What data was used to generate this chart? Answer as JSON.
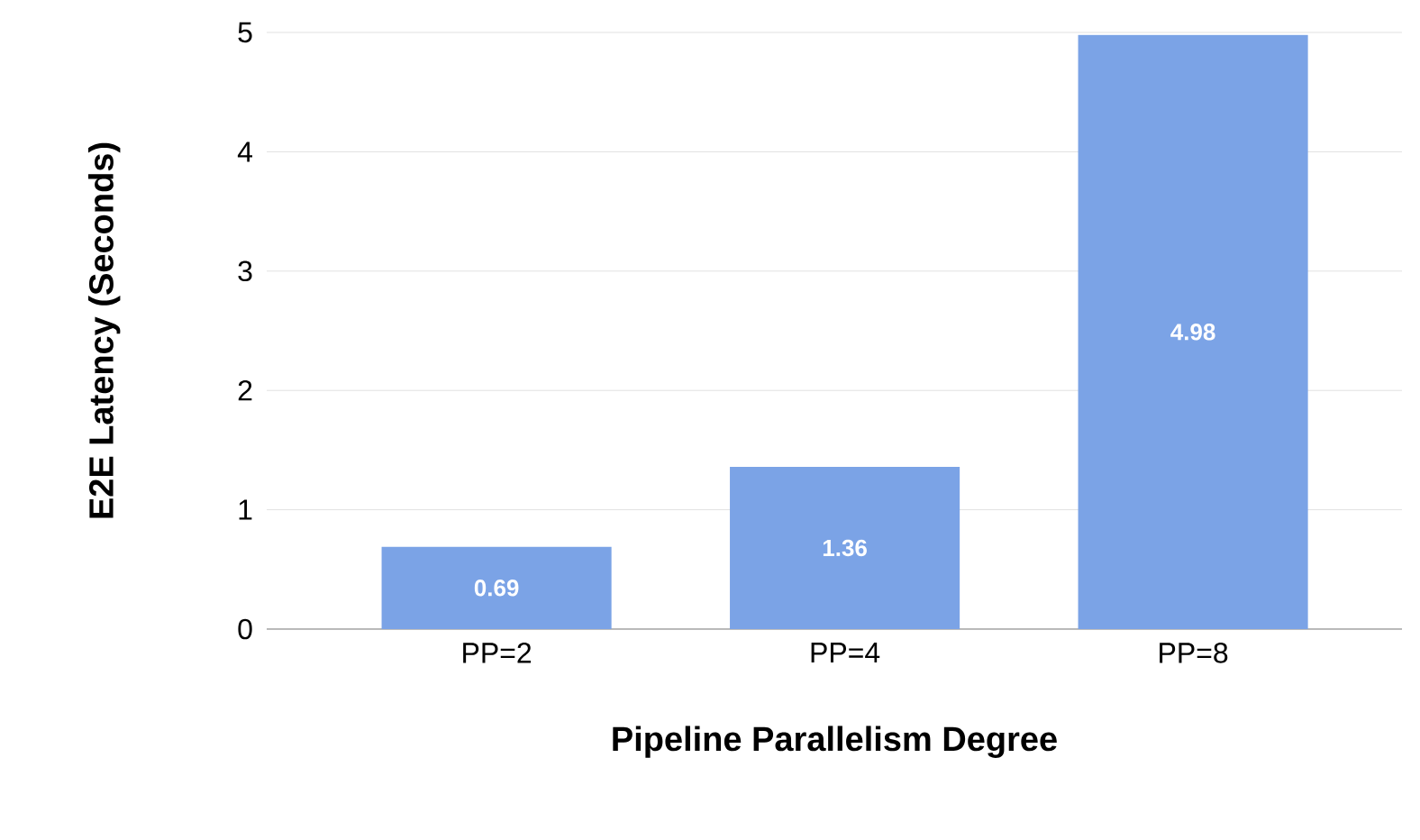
{
  "chart_data": {
    "type": "bar",
    "xlabel": "Pipeline Parallelism Degree",
    "ylabel": "E2E Latency (Seconds)",
    "categories": [
      "PP=2",
      "PP=4",
      "PP=8"
    ],
    "values": [
      0.69,
      1.36,
      4.98
    ],
    "color": "#7ba3e6",
    "value_labels": [
      "0.69",
      "1.36",
      "4.98"
    ],
    "ylim": [
      0,
      5
    ],
    "yticks": [
      0,
      1,
      2,
      3,
      4,
      5
    ],
    "grid": "y"
  }
}
